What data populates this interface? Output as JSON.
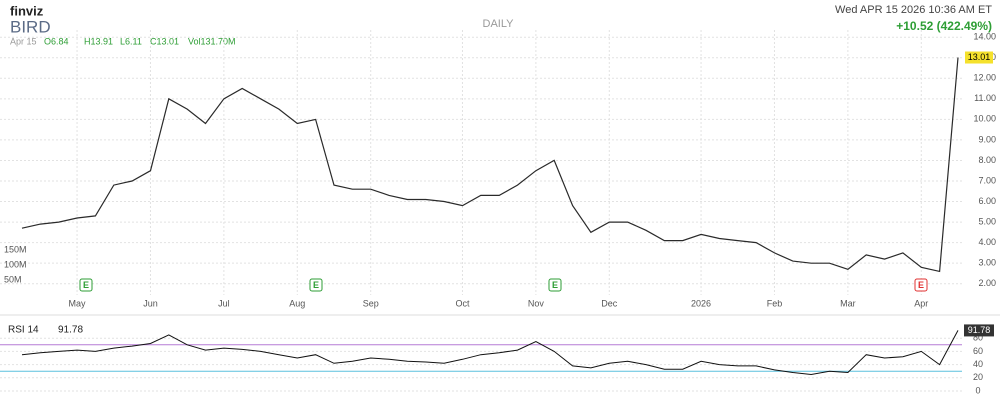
{
  "header": {
    "logo": "finviz",
    "ticker": "BIRD",
    "timeframe": "DAILY",
    "datetime": "Wed APR 15 2026 10:36 AM ET",
    "change": "+10.52 (422.49%)",
    "quote": {
      "date": "Apr 15",
      "open": "O6.84",
      "high": "H13.91",
      "low": "L6.11",
      "close": "C13.01",
      "volume": "Vol131.70M"
    }
  },
  "earnings": [
    "E",
    "E",
    "E",
    "E"
  ],
  "chart_data": [
    {
      "type": "line",
      "color": "#2a2a2a",
      "categories": [
        null,
        null,
        null,
        "May",
        null,
        null,
        null,
        "Jun",
        null,
        null,
        null,
        "Jul",
        null,
        null,
        null,
        "Aug",
        null,
        null,
        null,
        "Sep",
        null,
        null,
        null,
        null,
        "Oct",
        null,
        null,
        null,
        "Nov",
        null,
        null,
        null,
        "Dec",
        null,
        null,
        null,
        null,
        "2026",
        null,
        null,
        null,
        "Feb",
        null,
        null,
        null,
        "Mar",
        null,
        null,
        null,
        "Apr",
        null,
        null
      ],
      "values": [
        4.7,
        4.9,
        5.0,
        5.2,
        5.3,
        6.8,
        7.0,
        7.5,
        11.0,
        10.5,
        9.8,
        11.0,
        11.5,
        11.0,
        10.5,
        9.8,
        10.0,
        6.8,
        6.6,
        6.6,
        6.3,
        6.1,
        6.1,
        6.0,
        5.8,
        6.3,
        6.3,
        6.8,
        7.5,
        8.0,
        5.8,
        4.5,
        5.0,
        5.0,
        4.6,
        4.1,
        4.1,
        4.4,
        4.2,
        4.1,
        4.0,
        3.5,
        3.1,
        3.0,
        3.0,
        2.7,
        3.4,
        3.2,
        3.5,
        2.8,
        2.6,
        13.01
      ],
      "last_label": "13.01",
      "ylim": [
        1.45,
        14.35
      ],
      "yticks": [
        {
          "value": 2,
          "label": "2.00"
        },
        {
          "value": 3,
          "label": "3.00"
        },
        {
          "value": 4,
          "label": "4.00"
        },
        {
          "value": 5,
          "label": "5.00"
        },
        {
          "value": 6,
          "label": "6.00"
        },
        {
          "value": 7,
          "label": "7.00"
        },
        {
          "value": 8,
          "label": "8.00"
        },
        {
          "value": 9,
          "label": "9.00"
        },
        {
          "value": 10,
          "label": "10.00"
        },
        {
          "value": 11,
          "label": "11.00"
        },
        {
          "value": 12,
          "label": "12.00"
        },
        {
          "value": 13,
          "label": "13.00"
        },
        {
          "value": 14,
          "label": "14.00"
        }
      ],
      "vol_ylim": [
        0,
        883000000
      ],
      "vol_ticks": [
        {
          "value": 50000000,
          "label": "50M"
        },
        {
          "value": 100000000,
          "label": "100M"
        },
        {
          "value": 150000000,
          "label": "150M"
        }
      ],
      "grid": true
    },
    {
      "type": "line",
      "title": "RSI 14",
      "current_label": "91.78",
      "color": "#111111",
      "values": [
        55,
        58,
        60,
        62,
        60,
        65,
        68,
        72,
        85,
        70,
        62,
        65,
        63,
        60,
        55,
        50,
        55,
        42,
        45,
        50,
        48,
        45,
        44,
        42,
        48,
        55,
        58,
        62,
        75,
        60,
        38,
        35,
        42,
        45,
        40,
        33,
        33,
        45,
        40,
        38,
        38,
        32,
        28,
        25,
        30,
        28,
        55,
        50,
        52,
        60,
        40,
        91.78
      ],
      "ylim": [
        0,
        100
      ],
      "yticks": [
        0,
        20,
        40,
        60,
        80
      ],
      "levels": [
        {
          "value": 70,
          "color": "#b57bd6"
        },
        {
          "value": 30,
          "color": "#5bc0de"
        }
      ]
    }
  ]
}
